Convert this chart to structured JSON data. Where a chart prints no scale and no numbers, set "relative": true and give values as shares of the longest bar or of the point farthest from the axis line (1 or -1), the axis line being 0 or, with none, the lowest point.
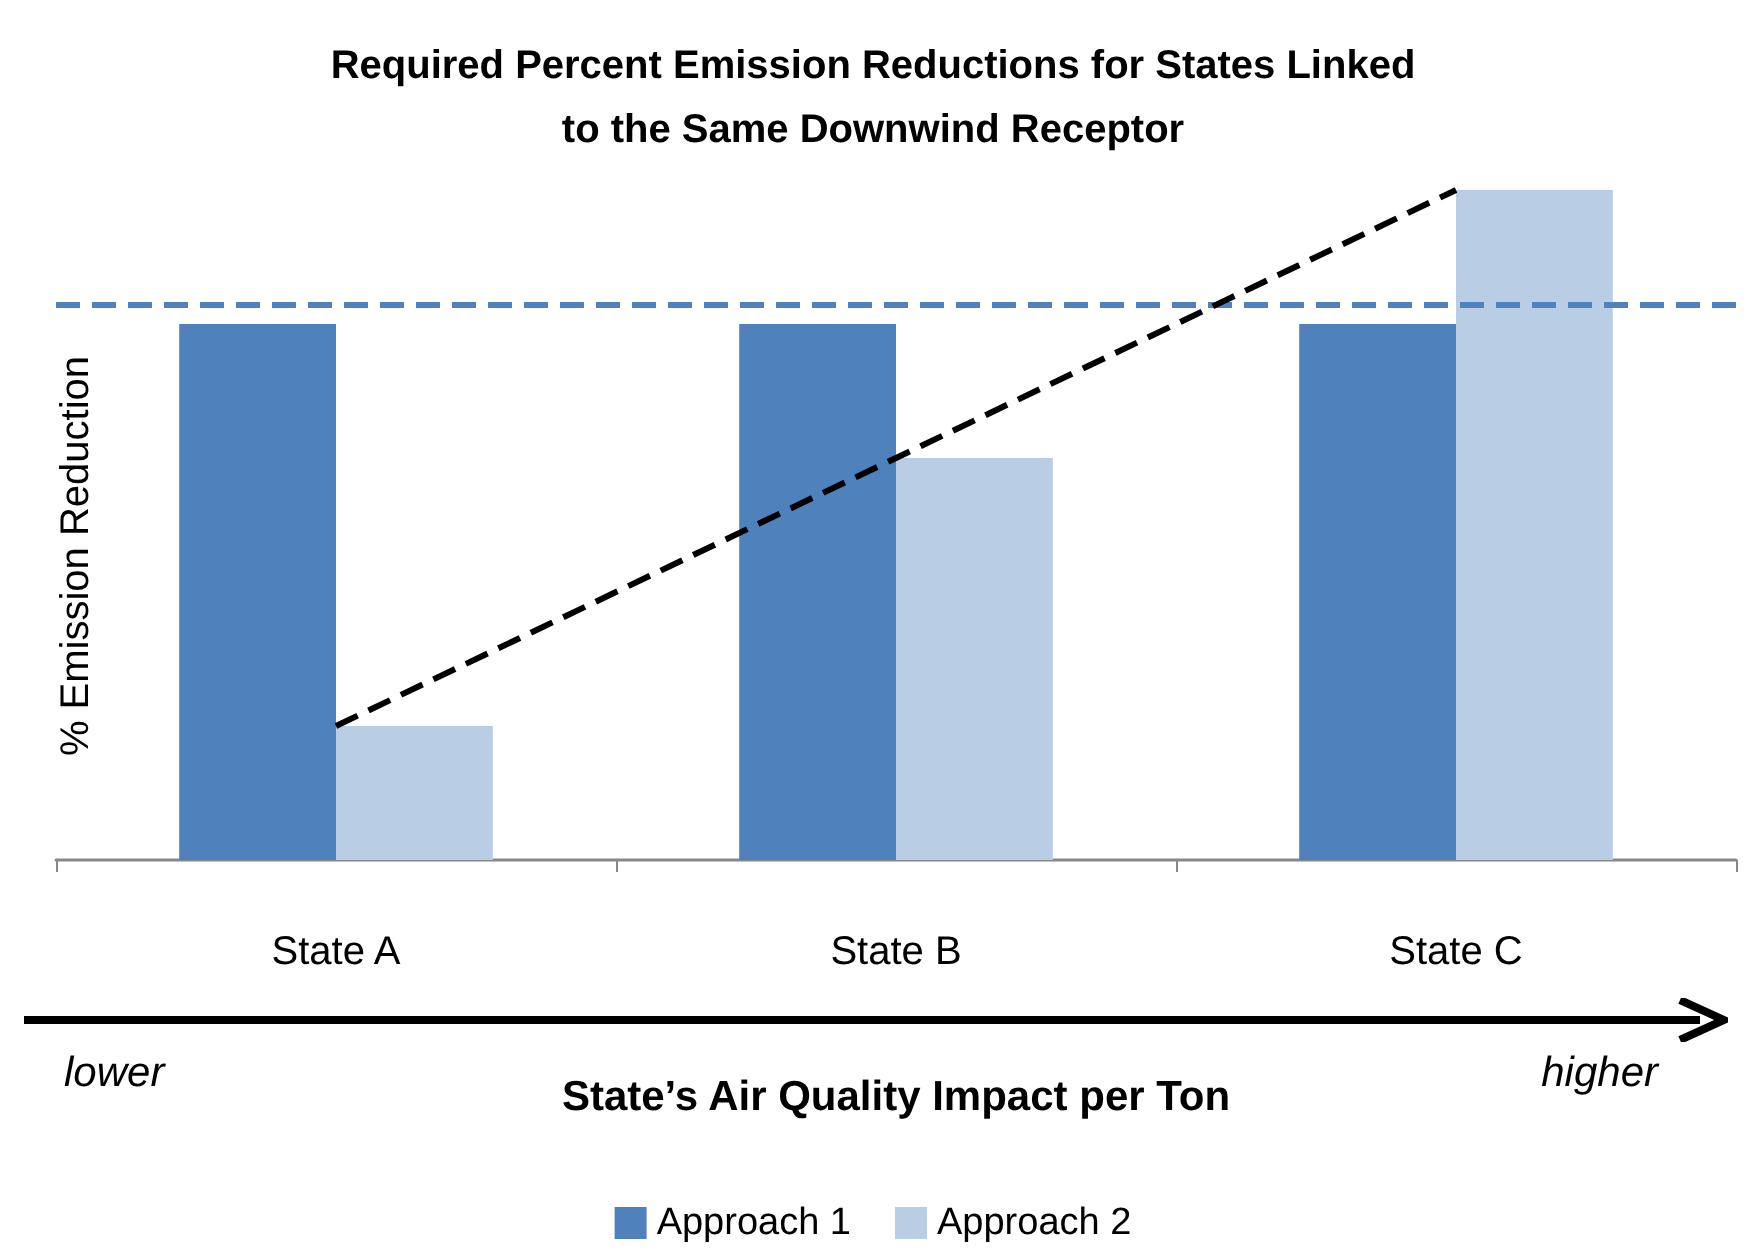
{
  "chart_data": {
    "type": "bar",
    "title": "Required Percent Emission Reductions for States Linked\nto the Same Downwind Receptor",
    "categories": [
      "State A",
      "State B",
      "State C"
    ],
    "xlabel": "State’s Air Quality Impact per Ton",
    "ylabel": "% Emission Reduction",
    "relative": true,
    "series": [
      {
        "name": "Approach 1",
        "color": "#4f81bd",
        "values": [
          0.8,
          0.8,
          0.8
        ]
      },
      {
        "name": "Approach 2",
        "color": "#b9cde5",
        "values": [
          0.2,
          0.6,
          1
        ]
      },
      {
        "type": "line",
        "color": "#000000",
        "values": [
          0.2,
          0.6,
          1
        ],
        "line_style": "dashed",
        "marker": "none"
      }
    ],
    "ref_lines": [
      {
        "axis": "y",
        "value": 0.83,
        "color": "#4f81bd",
        "line_style": "dashed"
      }
    ],
    "annotations": [
      "lower",
      "higher"
    ],
    "legend": "bottom",
    "grid": false
  }
}
